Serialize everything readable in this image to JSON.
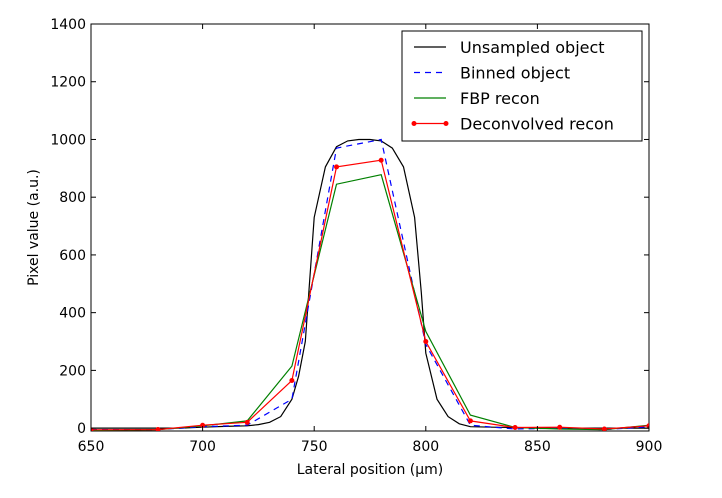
{
  "chart_data": {
    "type": "line",
    "title": "",
    "xlabel": "Lateral position (μm)",
    "ylabel": "Pixel value (a.u.)",
    "xlim": [
      650,
      900
    ],
    "ylim": [
      -10,
      1400
    ],
    "xticks": [
      650,
      700,
      750,
      800,
      850,
      900
    ],
    "yticks": [
      0,
      200,
      400,
      600,
      800,
      1000,
      1200,
      1400
    ],
    "grid": false,
    "legend_position": "top-right",
    "series": [
      {
        "name": "Unsampled object",
        "color": "#000000",
        "style": "solid",
        "marker": "none",
        "x": [
          650,
          690,
          700,
          710,
          720,
          725,
          730,
          735,
          740,
          743,
          746,
          750,
          755,
          760,
          765,
          770,
          775,
          780,
          785,
          790,
          795,
          798,
          800,
          805,
          810,
          815,
          820,
          830,
          840,
          850,
          860,
          900
        ],
        "y": [
          0,
          0,
          3,
          6,
          8,
          12,
          20,
          40,
          100,
          180,
          300,
          730,
          905,
          975,
          995,
          1000,
          1000,
          995,
          970,
          905,
          730,
          470,
          260,
          100,
          40,
          15,
          5,
          3,
          2,
          1,
          0,
          0
        ]
      },
      {
        "name": "Binned object",
        "color": "#0000ff",
        "style": "dashed",
        "marker": "none",
        "x": [
          650,
          680,
          700,
          720,
          740,
          760,
          780,
          800,
          820,
          840,
          860,
          880,
          900
        ],
        "y": [
          -5,
          -5,
          5,
          10,
          100,
          970,
          1000,
          290,
          10,
          -3,
          0,
          -5,
          5
        ]
      },
      {
        "name": "FBP recon",
        "color": "#008000",
        "style": "solid",
        "marker": "none",
        "x": [
          650,
          680,
          700,
          720,
          740,
          760,
          780,
          800,
          820,
          840,
          860,
          880,
          900
        ],
        "y": [
          -8,
          -5,
          8,
          25,
          215,
          845,
          878,
          335,
          45,
          2,
          -3,
          -5,
          10
        ]
      },
      {
        "name": "Deconvolved recon",
        "color": "#ff0000",
        "style": "solid",
        "marker": "dot",
        "x": [
          650,
          680,
          700,
          720,
          740,
          760,
          780,
          800,
          820,
          840,
          860,
          880,
          900
        ],
        "y": [
          -6,
          -5,
          10,
          20,
          165,
          905,
          928,
          300,
          25,
          2,
          3,
          -3,
          8
        ]
      }
    ]
  }
}
